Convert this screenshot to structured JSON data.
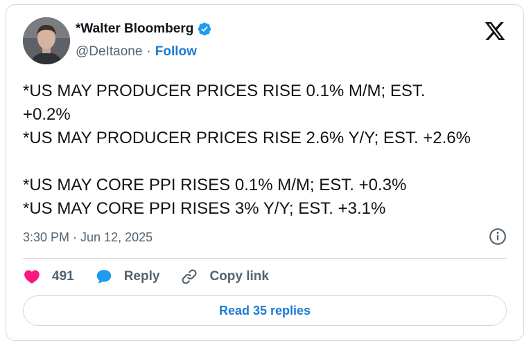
{
  "author": {
    "name": "*Walter Bloomberg",
    "handle": "@DeItaone",
    "separator": "·",
    "follow_label": "Follow",
    "verified_icon": "verified-badge-icon",
    "avatar_alt": "avatar"
  },
  "tweet": {
    "text": "*US MAY PRODUCER PRICES RISE 0.1% M/M; EST.\n+0.2%\n*US MAY PRODUCER PRICES RISE 2.6% Y/Y; EST. +2.6%\n\n*US MAY CORE PPI RISES 0.1% M/M; EST. +0.3%\n*US MAY CORE PPI RISES 3% Y/Y; EST. +3.1%",
    "timestamp": "3:30 PM · Jun 12, 2025"
  },
  "actions": {
    "likes": "491",
    "reply_label": "Reply",
    "copy_label": "Copy link"
  },
  "footer": {
    "read_replies_label": "Read 35 replies"
  },
  "colors": {
    "accent": "#1d7bd4",
    "like": "#f91880",
    "text": "#0f1419",
    "muted": "#536471",
    "border": "#cfd9de"
  }
}
